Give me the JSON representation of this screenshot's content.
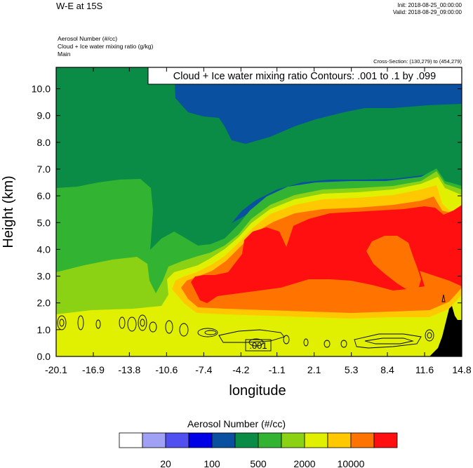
{
  "header": {
    "title": "W-E at 15S",
    "init": "Init: 2018-08-25_00:00:00",
    "valid": "Valid: 2018-08-29_09:00:00",
    "subtitles": [
      "Aerosol Number   (#/cc)",
      "Cloud + Ice water mixing ratio   (g/kg)",
      "Main"
    ],
    "cross_section": "Cross-Section: (130,279) to (454,279)"
  },
  "chart_data": {
    "type": "heatmap",
    "title": "W-E at 15S",
    "xlabel": "longitude",
    "ylabel": "Height (km)",
    "x_tick_labels": [
      "-20.1",
      "-16.9",
      "-13.8",
      "-10.6",
      "-7.4",
      "-4.2",
      "-1.1",
      "2.1",
      "5.3",
      "8.4",
      "11.6",
      "14.8"
    ],
    "y_tick_labels": [
      "0.0",
      "1.0",
      "2.0",
      "3.0",
      "4.0",
      "5.0",
      "6.0",
      "7.0",
      "8.0",
      "9.0",
      "10.0"
    ],
    "x_range": [
      -20.1,
      14.8
    ],
    "y_range": [
      0.0,
      10.8
    ],
    "contour_info": "Cloud + Ice water mixing ratio Contours: .001 to .1 by .099",
    "contour_labels": [
      ".001"
    ],
    "colorbar": {
      "title": "Aerosol Number  (#/cc)",
      "tick_labels": [
        "20",
        "100",
        "500",
        "2000",
        "10000"
      ],
      "colors": [
        "#ffffff",
        "#a0a0f5",
        "#5050f0",
        "#0000e6",
        "#0a50a0",
        "#0a8c46",
        "#32b432",
        "#8cd214",
        "#e1f000",
        "#ffc800",
        "#ff7300",
        "#ff0f0f"
      ]
    },
    "terrain_color": "#000000"
  }
}
